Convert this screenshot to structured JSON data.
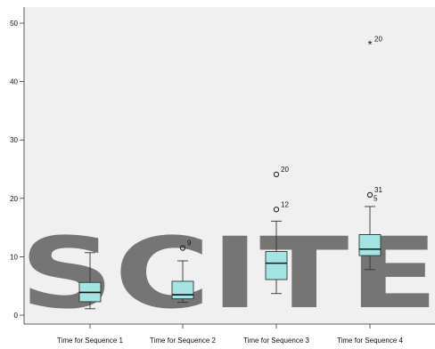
{
  "chart_data": {
    "type": "boxplot",
    "title": "",
    "xlabel": "",
    "ylabel": "",
    "ylim": [
      -3,
      52
    ],
    "yticks": [
      0,
      10,
      20,
      30,
      40,
      50
    ],
    "ytick_labels": [
      "0",
      "10",
      "20",
      "30",
      "40",
      "50"
    ],
    "grid": false,
    "legend": "none",
    "categories": [
      "Time for Sequence 1",
      "Time for Sequence 2",
      "Time for Sequence 3",
      "Time for Sequence 4"
    ],
    "boxes": [
      {
        "category": "Time for Sequence 1",
        "min": 1.1,
        "q1": 2.3,
        "median": 3.9,
        "q3": 5.6,
        "max": 10.7,
        "outliers": []
      },
      {
        "category": "Time for Sequence 2",
        "min": 2.2,
        "q1": 2.8,
        "median": 3.5,
        "q3": 5.8,
        "max": 9.3,
        "outliers": [
          {
            "value": 11.5,
            "marker": "circle",
            "label": "9"
          }
        ]
      },
      {
        "category": "Time for Sequence 3",
        "min": 3.7,
        "q1": 6.1,
        "median": 8.9,
        "q3": 10.9,
        "max": 16.1,
        "outliers": [
          {
            "value": 18.1,
            "marker": "circle",
            "label": "12"
          },
          {
            "value": 24.1,
            "marker": "circle",
            "label": "20"
          }
        ]
      },
      {
        "category": "Time for Sequence 4",
        "min": 7.8,
        "q1": 10.2,
        "median": 11.3,
        "q3": 13.8,
        "max": 18.6,
        "outliers": [
          {
            "value": 20.6,
            "marker": "circle",
            "label": "31"
          },
          {
            "value": 46.4,
            "marker": "star",
            "label": "20"
          }
        ],
        "extra_labels": [
          {
            "value": 19.4,
            "label": "5"
          }
        ]
      }
    ]
  },
  "colors": {
    "plot_background": "#f0f0f0",
    "box_fill": "#a3e5e3",
    "box_stroke": "#333333",
    "axis": "#333333",
    "watermark": "#d2d2d2"
  },
  "watermark": {
    "text": "SCITE"
  }
}
